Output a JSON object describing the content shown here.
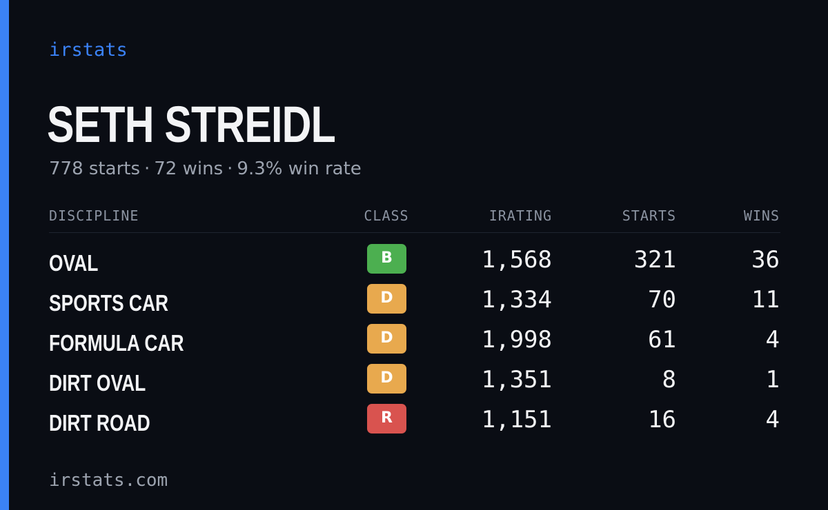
{
  "brand": "irstats",
  "driver": {
    "name": "SETH STREIDL",
    "summary": {
      "starts": "778 starts",
      "wins": "72 wins",
      "win_rate": "9.3% win rate",
      "separator": "·"
    }
  },
  "table": {
    "headers": {
      "discipline": "DISCIPLINE",
      "class": "CLASS",
      "irating": "IRATING",
      "starts": "STARTS",
      "wins": "WINS"
    },
    "rows": [
      {
        "discipline": "OVAL",
        "class": "B",
        "class_color": "#4caf50",
        "irating": "1,568",
        "starts": "321",
        "wins": "36"
      },
      {
        "discipline": "SPORTS CAR",
        "class": "D",
        "class_color": "#e8a94e",
        "irating": "1,334",
        "starts": "70",
        "wins": "11"
      },
      {
        "discipline": "FORMULA CAR",
        "class": "D",
        "class_color": "#e8a94e",
        "irating": "1,998",
        "starts": "61",
        "wins": "4"
      },
      {
        "discipline": "DIRT OVAL",
        "class": "D",
        "class_color": "#e8a94e",
        "irating": "1,351",
        "starts": "8",
        "wins": "1"
      },
      {
        "discipline": "DIRT ROAD",
        "class": "R",
        "class_color": "#d9534f",
        "irating": "1,151",
        "starts": "16",
        "wins": "4"
      }
    ]
  },
  "footer": "irstats.com",
  "colors": {
    "background": "#0a0d14",
    "accent": "#3b82f6"
  }
}
